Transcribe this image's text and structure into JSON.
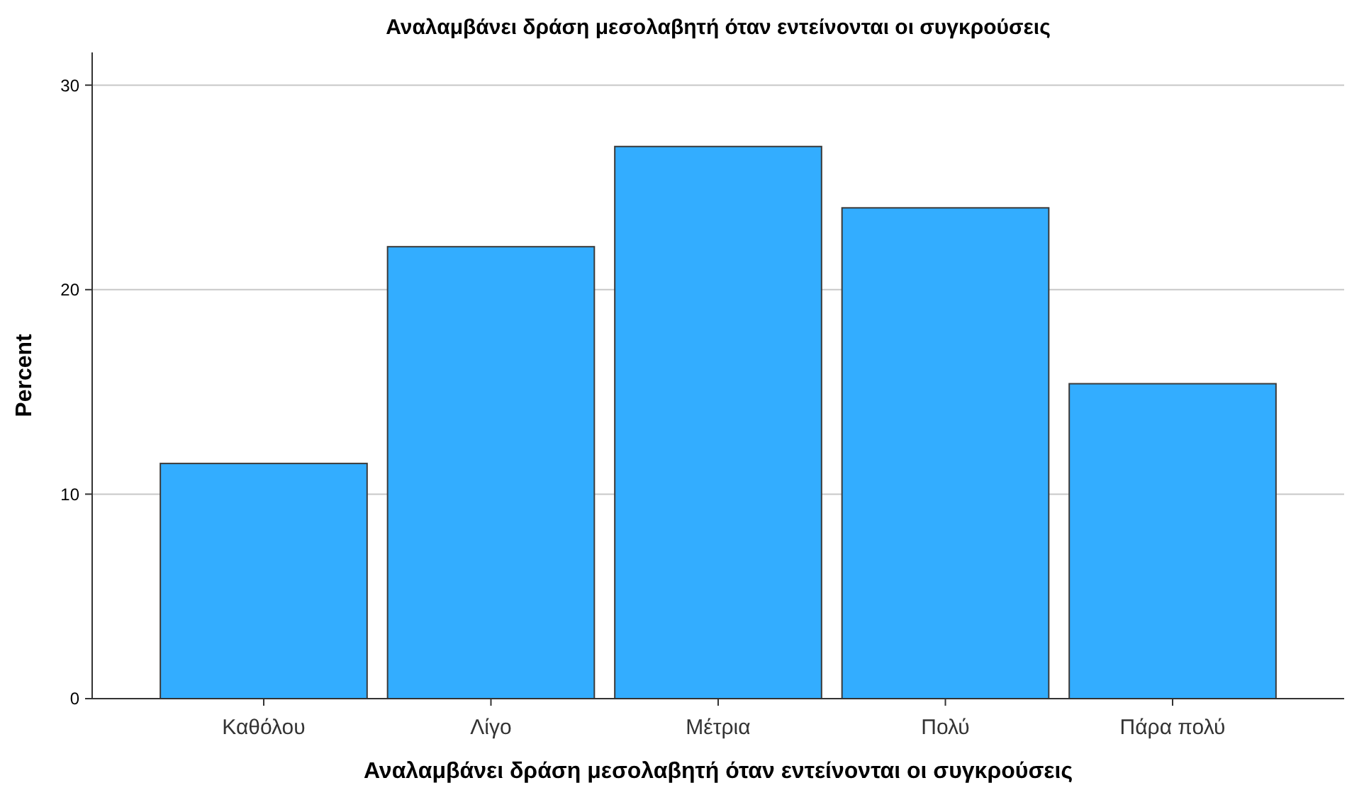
{
  "chart_data": {
    "type": "bar",
    "title": "Αναλαμβάνει δράση μεσολαβητή όταν εντείνονται οι συγκρούσεις",
    "xlabel": "Αναλαμβάνει δράση μεσολαβητή όταν εντείνονται οι συγκρούσεις",
    "ylabel": "Percent",
    "categories": [
      "Καθόλου",
      "Λίγο",
      "Μέτρια",
      "Πολύ",
      "Πάρα πολύ"
    ],
    "values": [
      11.5,
      22.1,
      27.0,
      24.0,
      15.4
    ],
    "color": "#33adff",
    "ylim": [
      0,
      31.6
    ],
    "yticks": [
      0,
      10,
      20,
      30
    ],
    "grid": "y"
  }
}
